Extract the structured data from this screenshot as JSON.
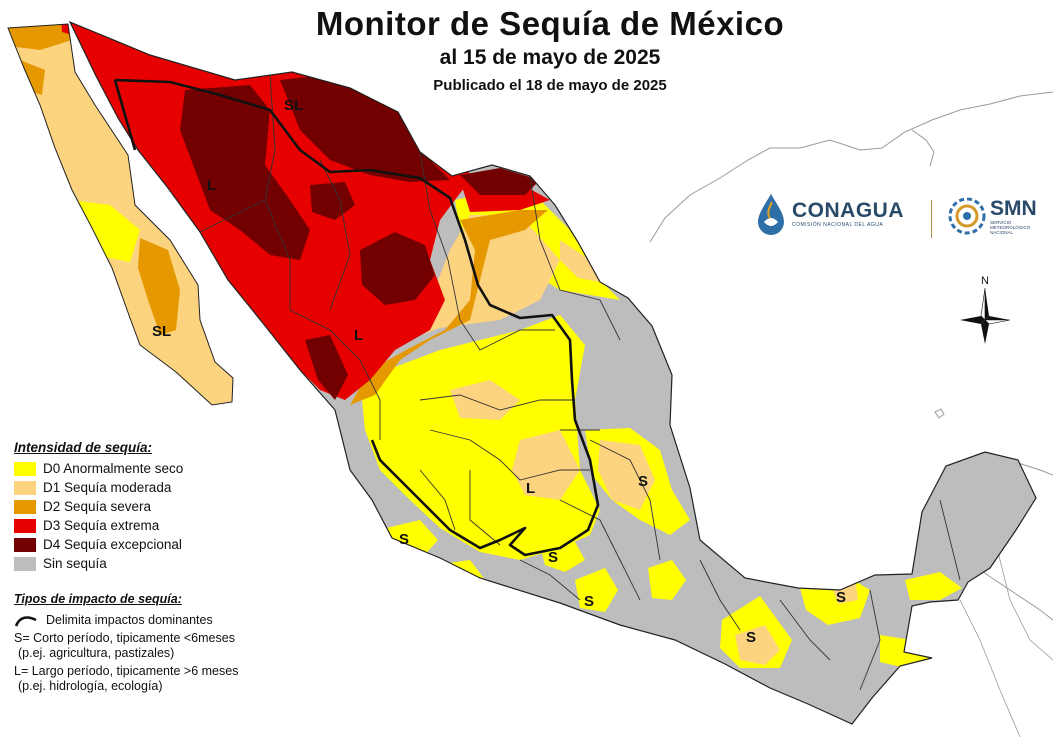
{
  "title": "Monitor de Sequía de México",
  "subtitle": "al 15 de mayo de 2025",
  "published": "Publicado el 18 de mayo de 2025",
  "legend": {
    "title": "Intensidad de sequía:",
    "items": [
      {
        "label": "D0 Anormalmente seco",
        "color": "#ffff00"
      },
      {
        "label": "D1 Sequía moderada",
        "color": "#fcd37f"
      },
      {
        "label": "D2 Sequía severa",
        "color": "#e69800"
      },
      {
        "label": "D3 Sequía extrema",
        "color": "#e60000"
      },
      {
        "label": "D4 Sequía excepcional",
        "color": "#730000"
      },
      {
        "label": "Sin sequía",
        "color": "#bdbdbd"
      }
    ]
  },
  "impact": {
    "title": "Tipos de impacto de sequía:",
    "line_label": "Delimita impactos dominantes",
    "short_label": "S= Corto período, tipicamente <6meses",
    "short_example": "(p.ej. agricultura, pastizales)",
    "long_label": "L= Largo período, tipicamente >6 meses",
    "long_example": "(p.ej. hidrología, ecología)"
  },
  "map_labels": {
    "sl": "SL",
    "l": "L",
    "s": "S"
  },
  "logos": {
    "conagua": "CONAGUA",
    "conagua_sub": "COMISIÓN NACIONAL DEL AGUA",
    "smn": "SMN",
    "smn_sub1": "SERVICIO",
    "smn_sub2": "METEOROLÓGICO",
    "smn_sub3": "NACIONAL"
  },
  "compass": "N"
}
